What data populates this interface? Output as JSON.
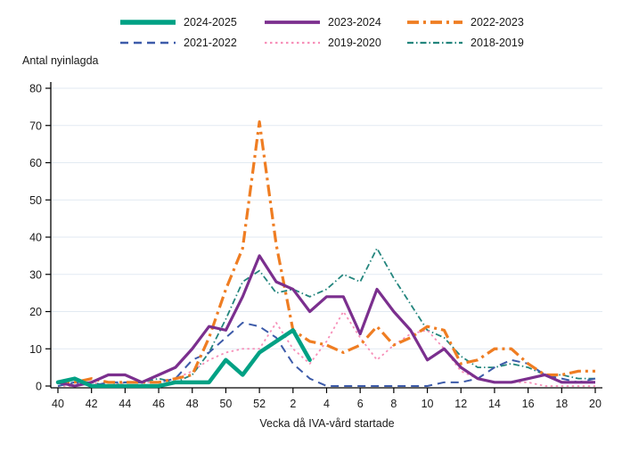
{
  "figure": {
    "y_axis_title": "Antal nyinlagda",
    "x_axis_title": "Vecka då IVA-vård startade"
  },
  "legend": {
    "position": "top",
    "items": [
      {
        "label": "2024-2025",
        "series": 0
      },
      {
        "label": "2023-2024",
        "series": 1
      },
      {
        "label": "2022-2023",
        "series": 2
      },
      {
        "label": "2021-2022",
        "series": 3
      },
      {
        "label": "2019-2020",
        "series": 4
      },
      {
        "label": "2018-2019",
        "series": 5
      }
    ]
  },
  "chart_data": {
    "type": "line",
    "title": "",
    "xlabel": "Vecka då IVA-vård startade",
    "ylabel": "Antal nyinlagda",
    "ylim": [
      0,
      80
    ],
    "yticks": [
      0,
      10,
      20,
      30,
      40,
      50,
      60,
      70,
      80
    ],
    "grid": "horizontal-light-blue",
    "x_categories": [
      "40",
      "41",
      "42",
      "43",
      "44",
      "45",
      "46",
      "47",
      "48",
      "49",
      "50",
      "51",
      "52",
      "1",
      "2",
      "3",
      "4",
      "5",
      "6",
      "7",
      "8",
      "9",
      "10",
      "11",
      "12",
      "13",
      "14",
      "15",
      "16",
      "17",
      "18",
      "19",
      "20"
    ],
    "x_tick_every": 2,
    "x_tick_labels_shown": [
      "40",
      "42",
      "44",
      "46",
      "48",
      "50",
      "52",
      "2",
      "4",
      "6",
      "8",
      "10",
      "12",
      "14",
      "16",
      "18",
      "20"
    ],
    "series": [
      {
        "name": "2024-2025",
        "color": "#00a184",
        "style": "solid",
        "width": 4.5,
        "dash": [],
        "values": [
          1,
          2,
          0,
          0,
          0,
          0,
          0,
          1,
          1,
          1,
          7,
          3,
          9,
          12,
          15,
          7
        ]
      },
      {
        "name": "2023-2024",
        "color": "#7b2f8e",
        "style": "solid",
        "width": 3.2,
        "dash": [],
        "values": [
          1,
          0,
          1,
          3,
          3,
          1,
          3,
          5,
          10,
          16,
          15,
          24,
          35,
          28,
          26,
          20,
          24,
          24,
          14,
          26,
          20,
          15,
          7,
          10,
          5,
          2,
          1,
          1,
          2,
          3,
          1,
          1,
          1
        ]
      },
      {
        "name": "2022-2023",
        "color": "#ef7d22",
        "style": "dash-dot",
        "width": 3.2,
        "dash": [
          13,
          5,
          3,
          5
        ],
        "values": [
          1,
          1,
          2,
          1,
          1,
          1,
          1,
          2,
          3,
          13,
          26,
          37,
          71,
          38,
          15,
          12,
          11,
          9,
          11,
          16,
          11,
          13,
          16,
          15,
          6,
          7,
          10,
          10,
          6,
          3,
          3,
          4,
          4
        ]
      },
      {
        "name": "2021-2022",
        "color": "#3d5ba9",
        "style": "dashed",
        "width": 2,
        "dash": [
          9,
          6
        ],
        "values": [
          0,
          1,
          0,
          1,
          1,
          1,
          1,
          2,
          7,
          9,
          13,
          17,
          16,
          13,
          6,
          2,
          0,
          0,
          0,
          0,
          0,
          0,
          0,
          1,
          1,
          2,
          5,
          7,
          6,
          3,
          2,
          1,
          2
        ]
      },
      {
        "name": "2019-2020",
        "color": "#f78fb8",
        "style": "dotted",
        "width": 1.8,
        "dash": [
          2.5,
          3.5
        ],
        "values": [
          0,
          0,
          1,
          0,
          1,
          1,
          1,
          2,
          4,
          7,
          9,
          10,
          10,
          17,
          10,
          6,
          12,
          20,
          13,
          7,
          11,
          14,
          15,
          10,
          4,
          2,
          1,
          1,
          1,
          0,
          0,
          0,
          0
        ]
      },
      {
        "name": "2018-2019",
        "color": "#23857d",
        "style": "dash-dot",
        "width": 1.8,
        "dash": [
          7,
          3,
          1.5,
          3
        ],
        "values": [
          0,
          1,
          1,
          0,
          1,
          1,
          2,
          1,
          3,
          9,
          18,
          28,
          31,
          25,
          26,
          24,
          26,
          30,
          28,
          37,
          29,
          22,
          15,
          13,
          8,
          5,
          5,
          6,
          5,
          3,
          3,
          2,
          2
        ]
      }
    ],
    "axis_color": "#000000",
    "gridline_color": "#e2eaf2",
    "text_color": "#1a1a1a"
  }
}
